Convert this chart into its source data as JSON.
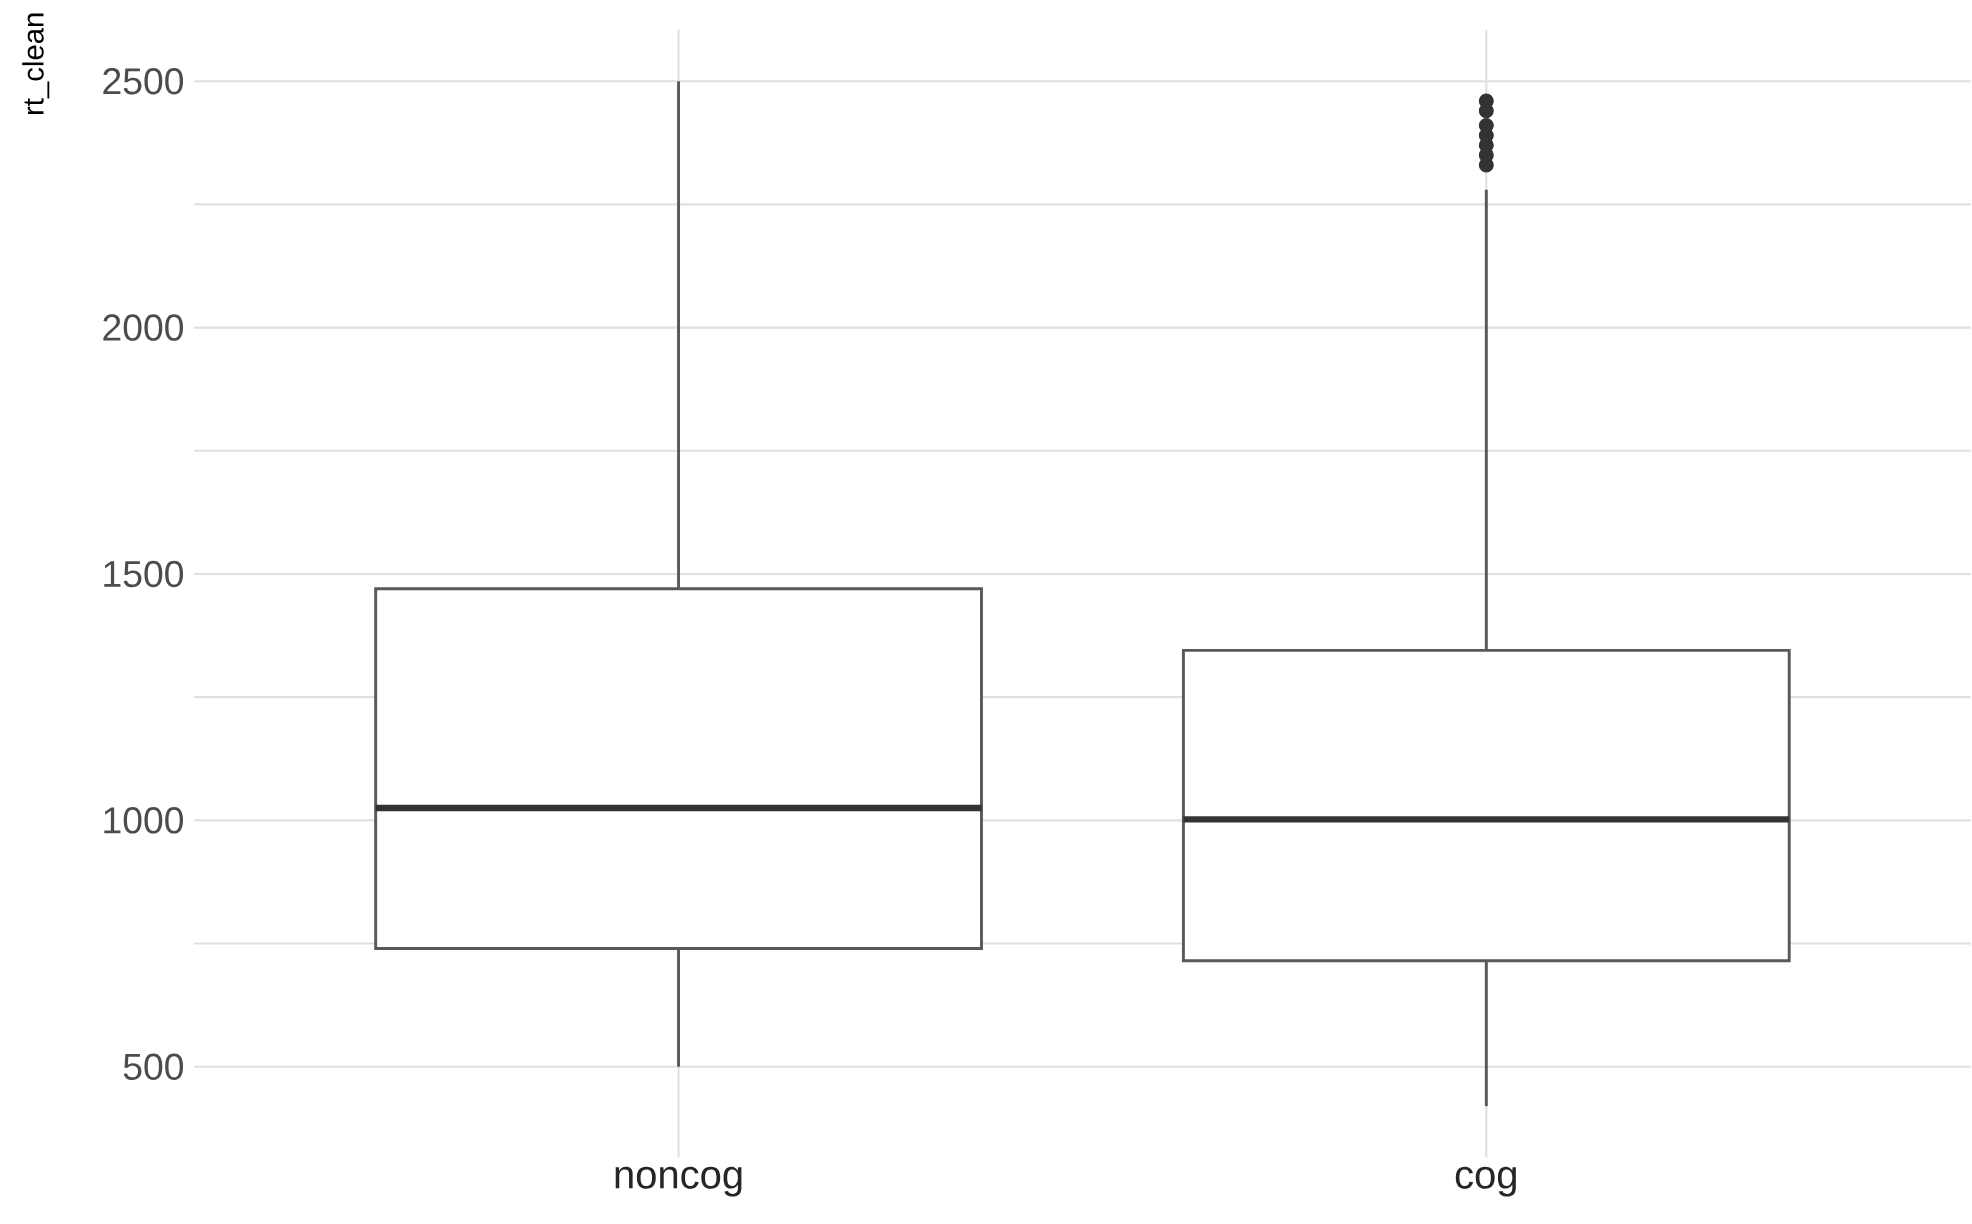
{
  "chart_data": {
    "type": "box",
    "ylabel": "rt_clean",
    "categories": [
      "noncog",
      "cog"
    ],
    "boxes": [
      {
        "low": 500,
        "q1": 740,
        "median": 1025,
        "q3": 1470,
        "high": 2500
      },
      {
        "low": 420,
        "q1": 715,
        "median": 1002,
        "q3": 1345,
        "high": 2280,
        "outliers": [
          2330,
          2350,
          2370,
          2390,
          2410,
          2440,
          2460
        ]
      }
    ],
    "color": "#595959",
    "ylim": [
      316,
      2604
    ],
    "yticks": [
      500,
      {
        "value": 750,
        "label": null
      },
      1000,
      {
        "value": 1250,
        "label": null
      },
      1500,
      {
        "value": 1750,
        "label": null
      },
      2000,
      {
        "value": 2250,
        "label": null
      },
      2500
    ],
    "grid": true
  }
}
